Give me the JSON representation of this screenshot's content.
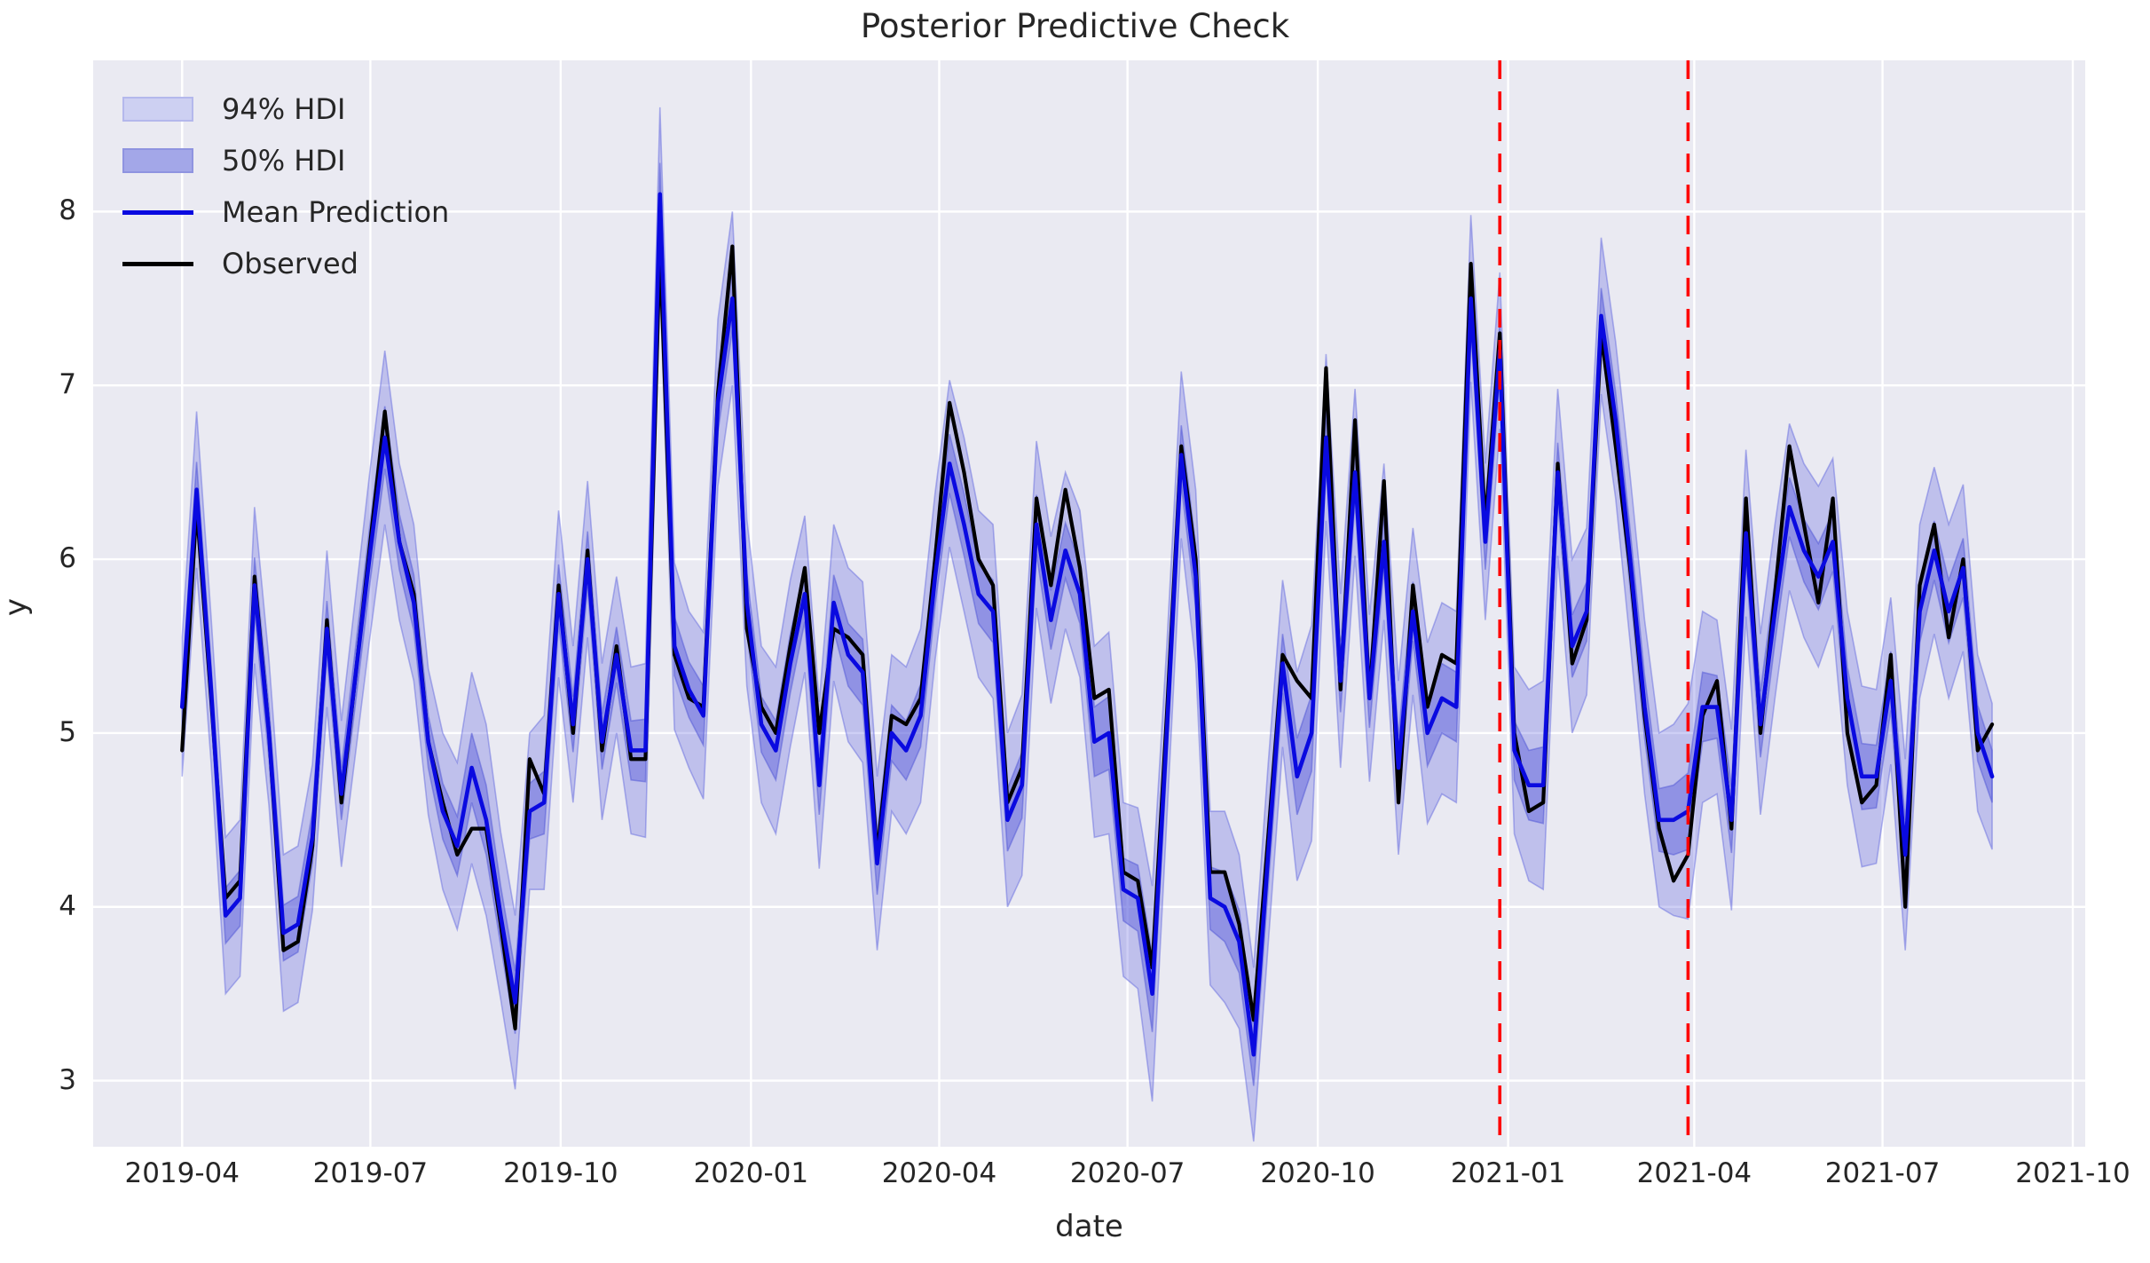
{
  "title": "Posterior Predictive Check",
  "xlabel": "date",
  "ylabel": "y",
  "legend": {
    "items": [
      {
        "label": "94% HDI",
        "type": "patch",
        "fill": "#cdd0f2",
        "edge": "#b4b8ec"
      },
      {
        "label": "50% HDI",
        "type": "patch",
        "fill": "#a3a7e8",
        "edge": "#8f94e0"
      },
      {
        "label": "Mean Prediction",
        "type": "line",
        "color": "#0a0ae0"
      },
      {
        "label": "Observed",
        "type": "line",
        "color": "#000000"
      }
    ]
  },
  "colors": {
    "figure_bg": "#ffffff",
    "plot_bg": "#eaeaf2",
    "grid": "#ffffff",
    "observed": "#000000",
    "mean": "#0a0ae0",
    "band94": "rgba(92,97,222,0.30)",
    "band94_edge": "rgba(92,97,222,0.45)",
    "band50": "rgba(86,92,220,0.45)",
    "band50_edge": "rgba(80,86,214,0.50)",
    "vline": "#ff0000",
    "text": "#262626"
  },
  "chart_data": {
    "type": "line",
    "title": "Posterior Predictive Check",
    "xlabel": "date",
    "ylabel": "y",
    "x_start": "2019-04-01",
    "x_step_days": 7,
    "n_points": 126,
    "xlim": [
      "2019-02-17",
      "2021-10-07"
    ],
    "ylim": [
      2.62,
      8.87
    ],
    "grid": true,
    "legend_position": "upper left",
    "x_ticks": [
      {
        "date": "2019-04-01",
        "label": "2019-04"
      },
      {
        "date": "2019-07-01",
        "label": "2019-07"
      },
      {
        "date": "2019-10-01",
        "label": "2019-10"
      },
      {
        "date": "2020-01-01",
        "label": "2020-01"
      },
      {
        "date": "2020-04-01",
        "label": "2020-04"
      },
      {
        "date": "2020-07-01",
        "label": "2020-07"
      },
      {
        "date": "2020-10-01",
        "label": "2020-10"
      },
      {
        "date": "2021-01-01",
        "label": "2021-01"
      },
      {
        "date": "2021-04-01",
        "label": "2021-04"
      },
      {
        "date": "2021-07-01",
        "label": "2021-07"
      },
      {
        "date": "2021-10-01",
        "label": "2021-10"
      }
    ],
    "y_ticks": [
      3,
      4,
      5,
      6,
      7,
      8
    ],
    "vlines": [
      "2020-12-28",
      "2021-03-29"
    ],
    "series": [
      {
        "name": "Observed",
        "values": [
          4.9,
          6.3,
          5.2,
          4.05,
          4.15,
          5.9,
          5.0,
          3.75,
          3.8,
          4.35,
          5.65,
          4.6,
          5.35,
          6.1,
          6.85,
          6.1,
          5.8,
          4.95,
          4.6,
          4.3,
          4.45,
          4.45,
          3.9,
          3.3,
          4.85,
          4.65,
          5.85,
          5.0,
          6.05,
          4.9,
          5.5,
          4.85,
          4.85,
          7.8,
          5.45,
          5.2,
          5.15,
          6.95,
          7.8,
          5.6,
          5.15,
          5.0,
          5.5,
          5.95,
          5.0,
          5.6,
          5.55,
          5.45,
          4.3,
          5.1,
          5.05,
          5.2,
          6.0,
          6.9,
          6.5,
          6.0,
          5.85,
          4.6,
          4.8,
          6.35,
          5.85,
          6.4,
          5.95,
          5.2,
          5.25,
          4.2,
          4.15,
          3.65,
          5.1,
          6.65,
          6.0,
          4.2,
          4.2,
          3.9,
          3.35,
          4.4,
          5.45,
          5.3,
          5.2,
          7.1,
          5.25,
          6.8,
          5.2,
          6.45,
          4.6,
          5.85,
          5.15,
          5.45,
          5.4,
          7.7,
          6.2,
          7.3,
          5.0,
          4.55,
          4.6,
          6.55,
          5.4,
          5.65,
          7.3,
          6.65,
          5.95,
          5.1,
          4.45,
          4.15,
          4.3,
          5.1,
          5.3,
          4.45,
          6.35,
          5.0,
          5.8,
          6.65,
          6.2,
          5.75,
          6.35,
          5.0,
          4.6,
          4.7,
          5.45,
          4.0,
          5.85,
          6.2,
          5.55,
          6.0,
          4.9,
          5.05
        ]
      },
      {
        "name": "Mean Prediction",
        "values": [
          5.15,
          6.4,
          5.25,
          3.95,
          4.05,
          5.85,
          5.0,
          3.85,
          3.9,
          4.4,
          5.6,
          4.65,
          5.35,
          6.05,
          6.7,
          6.1,
          5.75,
          4.95,
          4.55,
          4.35,
          4.8,
          4.5,
          3.95,
          3.45,
          4.55,
          4.6,
          5.8,
          5.05,
          6.0,
          4.95,
          5.45,
          4.9,
          4.9,
          8.1,
          5.5,
          5.25,
          5.1,
          6.9,
          7.5,
          5.75,
          5.05,
          4.9,
          5.4,
          5.8,
          4.7,
          5.75,
          5.45,
          5.35,
          4.25,
          5.0,
          4.9,
          5.1,
          5.9,
          6.55,
          6.2,
          5.8,
          5.7,
          4.5,
          4.7,
          6.2,
          5.65,
          6.05,
          5.8,
          4.95,
          5.0,
          4.1,
          4.05,
          3.5,
          5.0,
          6.6,
          5.9,
          4.05,
          4.0,
          3.8,
          3.15,
          4.3,
          5.4,
          4.75,
          5.0,
          6.7,
          5.3,
          6.5,
          5.2,
          6.1,
          4.8,
          5.7,
          5.0,
          5.2,
          5.15,
          7.5,
          6.1,
          7.2,
          4.9,
          4.7,
          4.7,
          6.5,
          5.5,
          5.7,
          7.4,
          6.8,
          6.0,
          5.15,
          4.5,
          4.5,
          4.55,
          5.15,
          5.15,
          4.5,
          6.15,
          5.05,
          5.7,
          6.3,
          6.05,
          5.9,
          6.1,
          5.2,
          4.75,
          4.75,
          5.3,
          4.3,
          5.7,
          6.05,
          5.7,
          5.95,
          5.0,
          4.75
        ]
      }
    ],
    "bands": [
      {
        "name": "94% HDI",
        "center": "Mean Prediction",
        "halfwidth": [
          0.4,
          0.45,
          0.42,
          0.45,
          0.45,
          0.45,
          0.42,
          0.45,
          0.45,
          0.42,
          0.45,
          0.42,
          0.45,
          0.48,
          0.5,
          0.45,
          0.45,
          0.42,
          0.45,
          0.48,
          0.55,
          0.55,
          0.48,
          0.5,
          0.45,
          0.5,
          0.48,
          0.45,
          0.45,
          0.45,
          0.45,
          0.48,
          0.5,
          0.5,
          0.48,
          0.45,
          0.48,
          0.48,
          0.5,
          0.48,
          0.45,
          0.48,
          0.48,
          0.45,
          0.48,
          0.45,
          0.5,
          0.52,
          0.5,
          0.45,
          0.48,
          0.5,
          0.48,
          0.48,
          0.5,
          0.48,
          0.5,
          0.5,
          0.52,
          0.48,
          0.48,
          0.45,
          0.48,
          0.55,
          0.58,
          0.5,
          0.52,
          0.62,
          0.5,
          0.48,
          0.5,
          0.5,
          0.55,
          0.5,
          0.5,
          0.52,
          0.48,
          0.6,
          0.62,
          0.48,
          0.5,
          0.48,
          0.48,
          0.45,
          0.5,
          0.48,
          0.52,
          0.55,
          0.55,
          0.48,
          0.45,
          0.45,
          0.48,
          0.55,
          0.6,
          0.48,
          0.5,
          0.48,
          0.45,
          0.45,
          0.48,
          0.5,
          0.5,
          0.55,
          0.62,
          0.55,
          0.5,
          0.52,
          0.48,
          0.52,
          0.5,
          0.48,
          0.5,
          0.52,
          0.48,
          0.5,
          0.52,
          0.5,
          0.48,
          0.55,
          0.5,
          0.48,
          0.5,
          0.48,
          0.45,
          0.42
        ]
      },
      {
        "name": "50% HDI",
        "center": "Mean Prediction",
        "halfwidth": [
          0.14,
          0.16,
          0.15,
          0.16,
          0.16,
          0.16,
          0.15,
          0.16,
          0.16,
          0.15,
          0.16,
          0.15,
          0.16,
          0.17,
          0.18,
          0.16,
          0.16,
          0.15,
          0.16,
          0.17,
          0.2,
          0.2,
          0.17,
          0.18,
          0.16,
          0.18,
          0.17,
          0.16,
          0.16,
          0.16,
          0.16,
          0.17,
          0.18,
          0.18,
          0.17,
          0.16,
          0.17,
          0.17,
          0.18,
          0.17,
          0.16,
          0.17,
          0.17,
          0.16,
          0.17,
          0.16,
          0.18,
          0.19,
          0.18,
          0.16,
          0.17,
          0.18,
          0.17,
          0.17,
          0.18,
          0.17,
          0.18,
          0.18,
          0.19,
          0.17,
          0.17,
          0.16,
          0.17,
          0.2,
          0.21,
          0.18,
          0.19,
          0.22,
          0.18,
          0.17,
          0.18,
          0.18,
          0.2,
          0.18,
          0.18,
          0.19,
          0.17,
          0.22,
          0.22,
          0.17,
          0.18,
          0.17,
          0.17,
          0.16,
          0.18,
          0.17,
          0.19,
          0.2,
          0.2,
          0.17,
          0.16,
          0.16,
          0.17,
          0.2,
          0.22,
          0.17,
          0.18,
          0.17,
          0.16,
          0.16,
          0.17,
          0.18,
          0.18,
          0.2,
          0.22,
          0.2,
          0.18,
          0.19,
          0.17,
          0.19,
          0.18,
          0.17,
          0.18,
          0.19,
          0.17,
          0.18,
          0.19,
          0.18,
          0.17,
          0.2,
          0.18,
          0.17,
          0.18,
          0.17,
          0.16,
          0.15
        ]
      }
    ]
  }
}
